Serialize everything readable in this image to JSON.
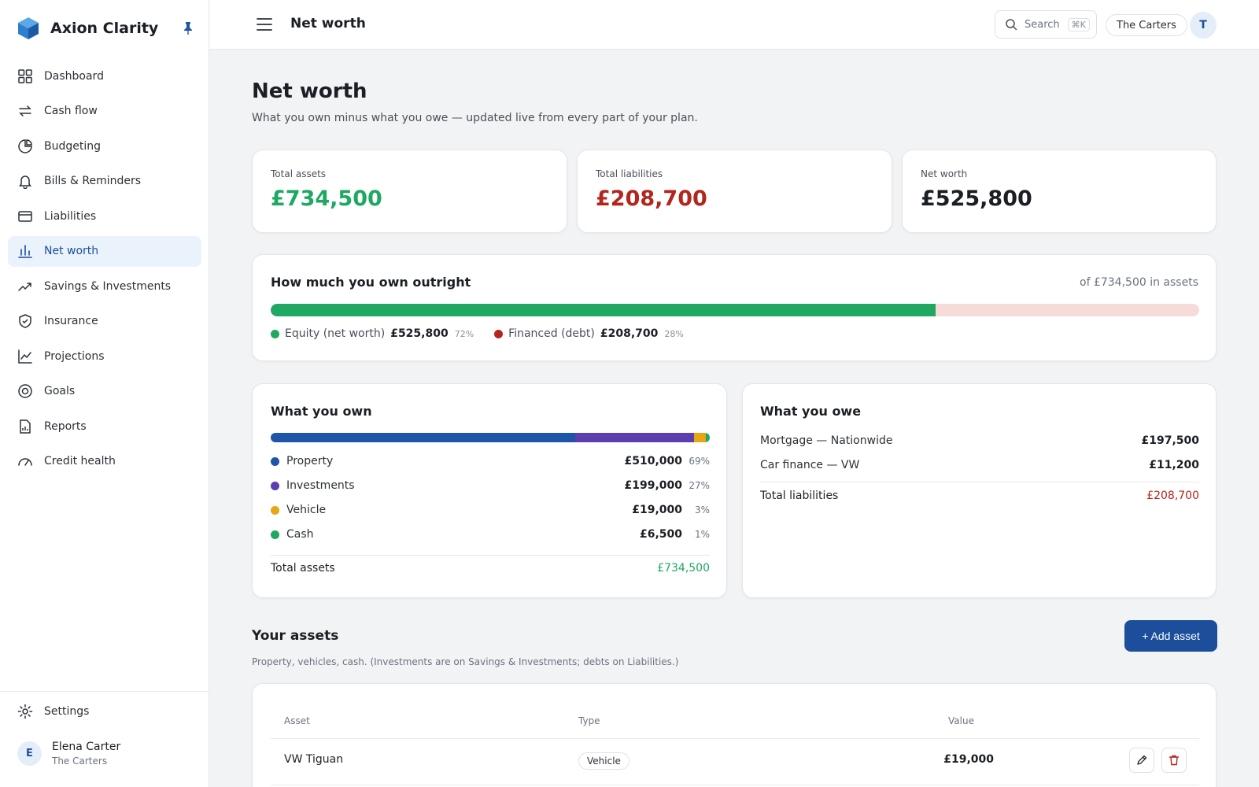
{
  "app": {
    "name": "Axion Clarity"
  },
  "sidebar": {
    "items": [
      {
        "label": "Dashboard",
        "icon": "grid-icon"
      },
      {
        "label": "Cash flow",
        "icon": "arrows-swap-icon"
      },
      {
        "label": "Budgeting",
        "icon": "pie-icon"
      },
      {
        "label": "Bills & Reminders",
        "icon": "bell-icon"
      },
      {
        "label": "Liabilities",
        "icon": "card-icon"
      },
      {
        "label": "Net worth",
        "icon": "bar-chart-icon",
        "active": true
      },
      {
        "label": "Savings & Investments",
        "icon": "trend-up-icon"
      },
      {
        "label": "Insurance",
        "icon": "shield-icon"
      },
      {
        "label": "Projections",
        "icon": "line-chart-icon"
      },
      {
        "label": "Goals",
        "icon": "target-icon"
      },
      {
        "label": "Reports",
        "icon": "report-icon"
      },
      {
        "label": "Credit health",
        "icon": "gauge-icon"
      }
    ],
    "settings_label": "Settings",
    "user": {
      "initial": "E",
      "name": "Elena Carter",
      "household": "The Carters"
    }
  },
  "topbar": {
    "title": "Net worth",
    "search_label": "Search",
    "search_shortcut": "⌘K",
    "household": "The Carters",
    "avatar_initial": "T"
  },
  "page": {
    "title": "Net worth",
    "subtitle": "What you own minus what you owe — updated live from every part of your plan."
  },
  "kpis": [
    {
      "label": "Total assets",
      "value": "£734,500",
      "color": "#1ea862"
    },
    {
      "label": "Total liabilities",
      "value": "£208,700",
      "color": "#b3261e"
    },
    {
      "label": "Net worth",
      "value": "£525,800",
      "color": "#1b1f24"
    }
  ],
  "ownership": {
    "title": "How much you own outright",
    "of_assets": "of £734,500 in assets",
    "equity_fraction": 0.716,
    "equity": {
      "label": "Equity (net worth)",
      "value": "£525,800",
      "pct": "72%",
      "color": "#1ea862"
    },
    "financed": {
      "label": "Financed (debt)",
      "value": "£208,700",
      "pct": "28%",
      "color": "#b3261e"
    }
  },
  "own": {
    "title": "What you own",
    "rows": [
      {
        "label": "Property",
        "value": "£510,000",
        "pct": "69%",
        "color": "#1f55a8",
        "share": 0.694
      },
      {
        "label": "Investments",
        "value": "£199,000",
        "pct": "27%",
        "color": "#5b3fb0",
        "share": 0.271
      },
      {
        "label": "Vehicle",
        "value": "£19,000",
        "pct": "3%",
        "color": "#e8a516",
        "share": 0.026
      },
      {
        "label": "Cash",
        "value": "£6,500",
        "pct": "1%",
        "color": "#1ea862",
        "share": 0.009
      }
    ],
    "total_label": "Total assets",
    "total_value": "£734,500"
  },
  "owe": {
    "title": "What you owe",
    "rows": [
      {
        "label": "Mortgage — Nationwide",
        "value": "£197,500"
      },
      {
        "label": "Car finance — VW",
        "value": "£11,200"
      }
    ],
    "total_label": "Total liabilities",
    "total_value": "£208,700"
  },
  "assets": {
    "title": "Your assets",
    "subtitle": "Property, vehicles, cash. (Investments are on Savings & Investments; debts on Liabilities.)",
    "add_label": "+ Add asset",
    "columns": [
      "Asset",
      "Type",
      "Value"
    ],
    "rows": [
      {
        "asset": "VW Tiguan",
        "type": "Vehicle",
        "value": "£19,000"
      }
    ]
  }
}
